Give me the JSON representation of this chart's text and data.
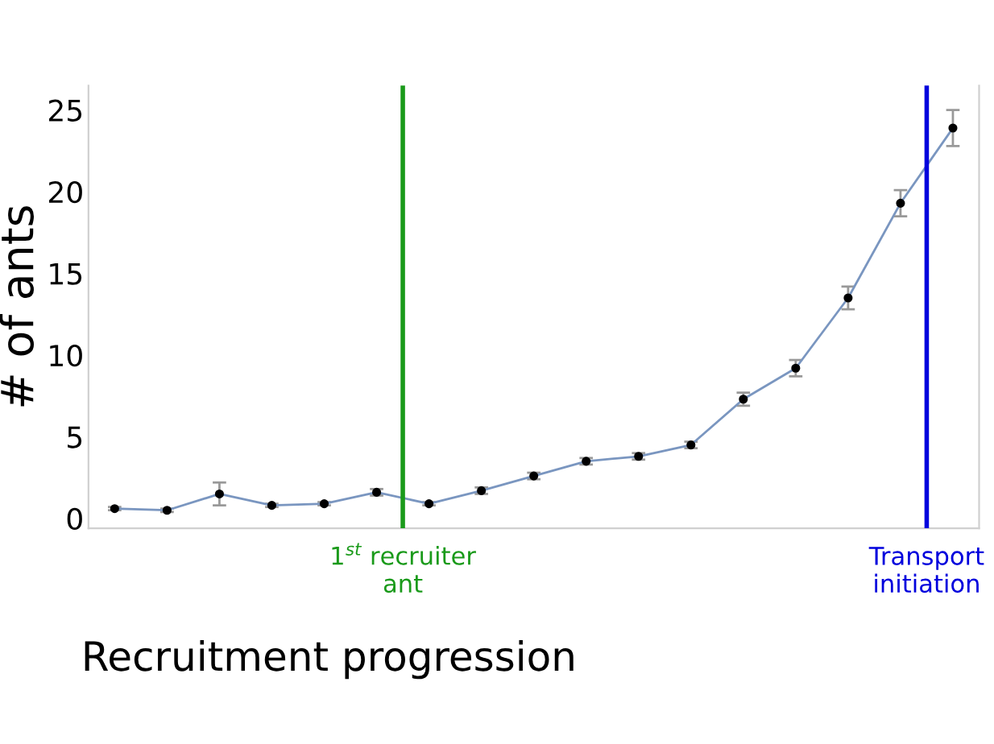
{
  "chart_data": {
    "type": "line",
    "xlabel": "Recruitment progression",
    "ylabel": "# of ants",
    "categories": [
      null,
      null,
      null,
      null,
      null,
      null,
      null,
      null,
      null,
      null,
      null,
      null,
      null,
      null,
      null,
      null,
      null
    ],
    "series": [
      {
        "color": "#7a96c0",
        "values": [
          0.6,
          0.5,
          1.5,
          0.8,
          0.9,
          1.6,
          0.9,
          1.7,
          2.6,
          3.5,
          3.8,
          4.5,
          7.3,
          9.2,
          13.5,
          19.3,
          23.9
        ],
        "errors": [
          0.1,
          0.1,
          0.7,
          0.1,
          0.1,
          0.2,
          0.1,
          0.2,
          0.2,
          0.2,
          0.2,
          0.2,
          0.4,
          0.5,
          0.7,
          0.8,
          1.1
        ]
      }
    ],
    "ylim": [
      -0.6,
      26.5
    ],
    "yticks": [
      0,
      5,
      10,
      15,
      20,
      25
    ],
    "tick_labels": "y",
    "grid": false,
    "legend": false,
    "marker": "circle",
    "line_style": "solid",
    "annotations": [
      "1$^{st}$ recruiter\nant",
      "Transport\ninitiation"
    ]
  }
}
